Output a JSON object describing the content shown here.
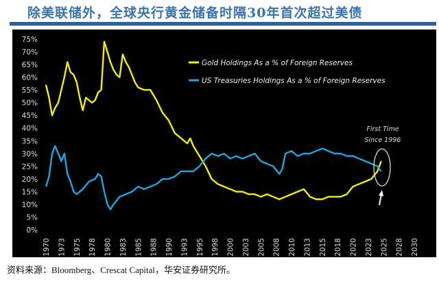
{
  "header": {
    "title": "除美联储外，全球央行黄金储备时隔30年首次超过美债"
  },
  "footer": {
    "source": "资料来源：Bloomberg、Crescat Capital，华安证券研究所。"
  },
  "chart_data": {
    "type": "line",
    "title": "",
    "xlabel": "",
    "ylabel": "",
    "xlim": [
      1970,
      2030
    ],
    "ylim": [
      0,
      75
    ],
    "x_tick_labels": [
      "1970",
      "1973",
      "1975",
      "1978",
      "1980",
      "1983",
      "1985",
      "1988",
      "1990",
      "1993",
      "1995",
      "1998",
      "2000",
      "2003",
      "2005",
      "2008",
      "2010",
      "2013",
      "2015",
      "2018",
      "2020",
      "2023",
      "2025",
      "2028",
      "2030"
    ],
    "y_tick_labels": [
      "0%",
      "5%",
      "10%",
      "15%",
      "20%",
      "25%",
      "30%",
      "35%",
      "40%",
      "45%",
      "50%",
      "55%",
      "60%",
      "65%",
      "70%",
      "75%"
    ],
    "grid": false,
    "background": "#000000",
    "legend_placement": "top-right",
    "series": [
      {
        "name": "Gold Holdings As a % of Foreign Reserves",
        "color": "#f5f000",
        "x": [
          1970,
          1970.5,
          1971,
          1971.5,
          1972,
          1972.5,
          1973,
          1973.5,
          1974,
          1974.5,
          1975,
          1975.5,
          1976,
          1976.5,
          1977,
          1977.5,
          1978,
          1978.5,
          1979,
          1979.5,
          1980,
          1980.5,
          1981,
          1981.5,
          1982,
          1982.5,
          1983,
          1983.5,
          1984,
          1984.5,
          1985,
          1986,
          1987,
          1988,
          1989,
          1990,
          1991,
          1992,
          1993,
          1993.5,
          1994,
          1995,
          1996,
          1997,
          1998,
          1999,
          2000,
          2001,
          2002,
          2003,
          2004,
          2005,
          2006,
          2007,
          2008,
          2009,
          2010,
          2011,
          2012,
          2013,
          2014,
          2015,
          2016,
          2017,
          2018,
          2019,
          2020,
          2021,
          2022,
          2023,
          2024,
          2024.6
        ],
        "values": [
          57,
          52,
          45,
          48,
          50,
          55,
          60,
          66,
          62,
          61,
          58,
          52,
          47,
          52,
          51,
          50,
          51,
          54,
          55,
          74,
          70,
          66,
          63,
          61,
          60,
          69,
          66,
          64,
          61,
          58,
          56,
          55,
          55,
          51,
          46,
          43,
          38,
          36,
          34,
          36,
          33,
          29,
          25,
          20,
          18,
          17,
          16,
          15,
          15,
          14,
          14,
          13,
          14,
          13,
          12,
          13,
          14,
          15,
          16,
          13,
          12,
          12,
          13,
          13,
          13,
          14,
          17,
          18,
          19,
          20,
          23,
          27
        ]
      },
      {
        "name": "US Treasuries Holdings As a % of Foreign Reserves",
        "color": "#1ea6e0",
        "x": [
          1970,
          1970.5,
          1971,
          1971.5,
          1972,
          1972.5,
          1973,
          1973.5,
          1974,
          1974.5,
          1975,
          1976,
          1977,
          1978,
          1978.5,
          1979,
          1979.5,
          1980,
          1980.5,
          1981,
          1982,
          1983,
          1984,
          1985,
          1986,
          1987,
          1988,
          1989,
          1990,
          1991,
          1992,
          1993,
          1994,
          1995,
          1996,
          1997,
          1998,
          1999,
          2000,
          2001,
          2002,
          2003,
          2004,
          2005,
          2006,
          2007,
          2008,
          2008.5,
          2009,
          2010,
          2011,
          2012,
          2013,
          2014,
          2015,
          2016,
          2017,
          2018,
          2019,
          2020,
          2021,
          2022,
          2023,
          2024,
          2024.6
        ],
        "values": [
          17,
          21,
          30,
          33,
          30,
          27,
          30,
          22,
          19,
          15,
          14,
          16,
          19,
          20,
          22,
          21,
          15,
          10,
          8,
          10,
          13,
          14,
          15,
          17,
          16,
          17,
          18,
          20,
          20,
          21,
          23,
          23,
          23,
          25,
          28,
          30,
          29,
          30,
          28,
          29,
          28,
          29,
          30,
          27,
          26,
          25,
          22,
          24,
          30,
          31,
          29,
          30,
          30,
          31,
          32,
          31,
          30,
          30,
          29,
          29,
          28,
          27,
          26,
          25,
          23
        ]
      }
    ],
    "annotations": [
      "First Time",
      "Since 1996"
    ]
  }
}
